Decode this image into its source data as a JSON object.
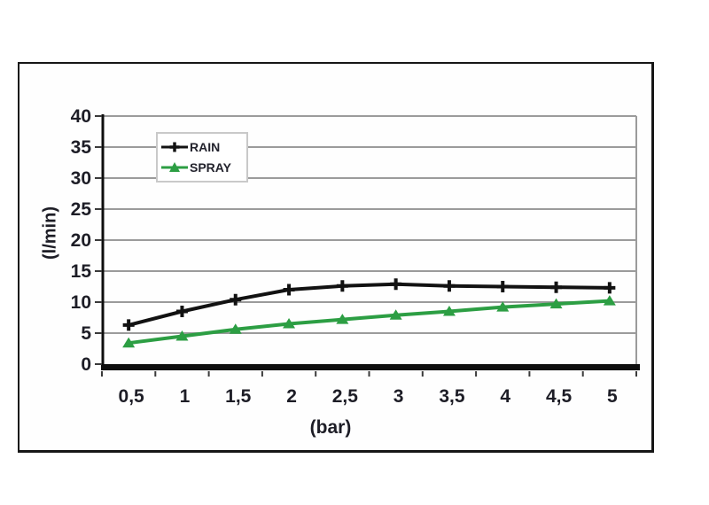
{
  "chart_data": {
    "type": "line",
    "title": "",
    "xlabel": "(bar)",
    "ylabel": "(l/min)",
    "x": [
      0.5,
      1,
      1.5,
      2,
      2.5,
      3,
      3.5,
      4,
      4.5,
      5
    ],
    "x_tick_labels": [
      "0,5",
      "1",
      "1,5",
      "2",
      "2,5",
      "3",
      "3,5",
      "4",
      "4,5",
      "5"
    ],
    "y_ticks": [
      0,
      5,
      10,
      15,
      20,
      25,
      30,
      35,
      40
    ],
    "ylim": [
      0,
      40
    ],
    "grid": true,
    "legend_position": "top-left-inside",
    "series": [
      {
        "name": "RAIN",
        "color": "#121212",
        "marker": "plus",
        "values": [
          6.3,
          8.5,
          10.4,
          12.0,
          12.6,
          12.9,
          12.6,
          12.5,
          12.4,
          12.3
        ]
      },
      {
        "name": "SPRAY",
        "color": "#2c9e43",
        "marker": "triangle-up",
        "values": [
          3.4,
          4.5,
          5.6,
          6.5,
          7.2,
          7.9,
          8.5,
          9.2,
          9.7,
          10.2
        ]
      }
    ]
  },
  "colors": {
    "grid": "#9b9b9b",
    "axis": "#0e0e0e",
    "tick": "#3a3a3a",
    "text": "#1d1d26",
    "frame": "#161616",
    "legend_border": "#c9c9c9",
    "rain": "#121212",
    "spray": "#2c9e43"
  }
}
